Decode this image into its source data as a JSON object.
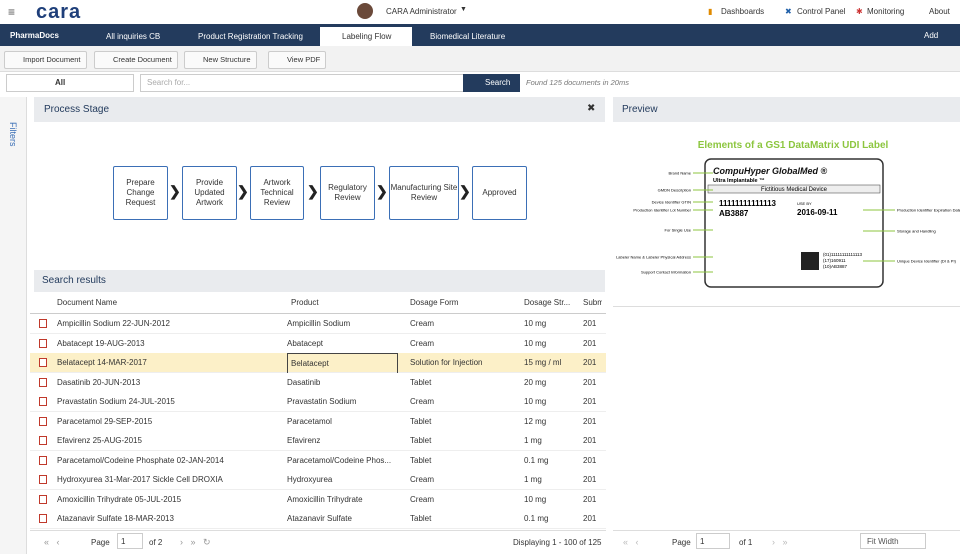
{
  "header": {
    "logo": "cara",
    "user": "CARA Administrator",
    "nav": [
      "Dashboards",
      "Control Panel",
      "Monitoring",
      "About"
    ]
  },
  "tabs": {
    "app": "PharmaDocs",
    "items": [
      "All inquiries CB",
      "Product Registration Tracking",
      "Labeling Flow",
      "Biomedical Literature"
    ],
    "add": "Add"
  },
  "toolbar": [
    "Import Document",
    "Create Document",
    "New Structure",
    "View PDF"
  ],
  "search": {
    "scope": "All",
    "placeholder": "Search for...",
    "button": "Search",
    "status": "Found 125 documents in 20ms"
  },
  "sidebar": {
    "label": "Filters"
  },
  "process": {
    "title": "Process Stage",
    "stages": [
      "Prepare Change Request",
      "Provide Updated Artwork",
      "Artwork Technical Review",
      "Regulatory Review",
      "Manufacturing Site Review",
      "Approved"
    ]
  },
  "results": {
    "title": "Search results",
    "columns": [
      "Document Name",
      "Product",
      "Dosage Form",
      "Dosage Str...",
      "Subm"
    ],
    "rows": [
      [
        "Ampicillin Sodium 22-JUN-2012",
        "Ampicillin Sodium",
        "Cream",
        "10 mg",
        "201"
      ],
      [
        "Abatacept 19-AUG-2013",
        "Abatacept",
        "Cream",
        "10 mg",
        "201"
      ],
      [
        "Belatacept 14-MAR-2017",
        "Belatacept",
        "Solution for Injection",
        "15 mg / ml",
        "201"
      ],
      [
        "Dasatinib 20-JUN-2013",
        "Dasatinib",
        "Tablet",
        "20 mg",
        "201"
      ],
      [
        "Pravastatin Sodium 24-JUL-2015",
        "Pravastatin Sodium",
        "Cream",
        "10 mg",
        "201"
      ],
      [
        "Paracetamol 29-SEP-2015",
        "Paracetamol",
        "Tablet",
        "12 mg",
        "201"
      ],
      [
        "Efavirenz 25-AUG-2015",
        "Efavirenz",
        "Tablet",
        "1 mg",
        "201"
      ],
      [
        "Paracetamol/Codeine Phosphate 02-JAN-2014",
        "Paracetamol/Codeine Phos...",
        "Tablet",
        "0.1 mg",
        "201"
      ],
      [
        "Hydroxyurea 31-Mar-2017 Sickle Cell DROXIA",
        "Hydroxyurea",
        "Cream",
        "1 mg",
        "201"
      ],
      [
        "Amoxicillin Trihydrate 05-JUL-2015",
        "Amoxicillin Trihydrate",
        "Cream",
        "10 mg",
        "201"
      ],
      [
        "Atazanavir Sulfate 18-MAR-2013",
        "Atazanavir Sulfate",
        "Tablet",
        "0.1 mg",
        "201"
      ]
    ],
    "pager": {
      "page_label": "Page",
      "page": "1",
      "of": "of 2",
      "displaying": "Displaying 1 - 100 of 125"
    }
  },
  "preview": {
    "title": "Preview",
    "image": {
      "title": "Elements of a GS1 DataMatrix UDI Label",
      "brand": "CompuHyper GlobalMed ®",
      "sub": "Ultra Implantable ™",
      "device": "Fictitious Medical Device",
      "gtin": "11111111111113",
      "lot": "AB3887",
      "use_by": "USE BY",
      "date": "2016-09-11",
      "udi": [
        "(01)11111111111113",
        "(17)160911",
        "(10)AB3887"
      ],
      "left": [
        "Brand Name",
        "GMDN Description",
        "Device Identifier GTIN",
        "Production Identifier Lot Number",
        "For Single Use",
        "Labeler Name & Labeler Physical Address",
        "Support Contact Information"
      ],
      "right": [
        "Production Identifier Expiration Date",
        "Storage and Handling",
        "Unique Device Identifier (DI & PI)"
      ]
    },
    "pager": {
      "page_label": "Page",
      "page": "1",
      "of": "of 1",
      "zoom": "Fit Width"
    }
  }
}
